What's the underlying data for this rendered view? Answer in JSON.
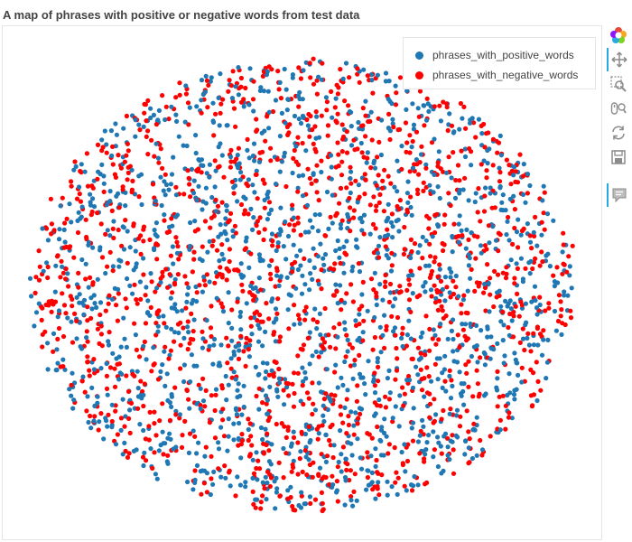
{
  "chart_data": {
    "type": "scatter",
    "title": "A map of phrases with positive or negative words from test data",
    "xlabel": "",
    "ylabel": "",
    "grid": false,
    "legend_placement": "top-right",
    "xlim": [
      -1,
      1
    ],
    "ylim": [
      -1,
      1
    ],
    "points_per_series_approx": 1500,
    "series": [
      {
        "name": "phrases_with_positive_words",
        "color": "#1f77b4"
      },
      {
        "name": "phrases_with_negative_words",
        "color": "#ff0000"
      }
    ]
  },
  "toolbar": {
    "tools": [
      {
        "name": "bokeh-logo-icon",
        "active": false
      },
      {
        "name": "pan-icon",
        "active": true
      },
      {
        "name": "box-zoom-icon",
        "active": false
      },
      {
        "name": "wheel-zoom-icon",
        "active": false
      },
      {
        "name": "reset-icon",
        "active": false
      },
      {
        "name": "save-icon",
        "active": false
      },
      {
        "name": "hover-icon",
        "active": true
      }
    ]
  }
}
